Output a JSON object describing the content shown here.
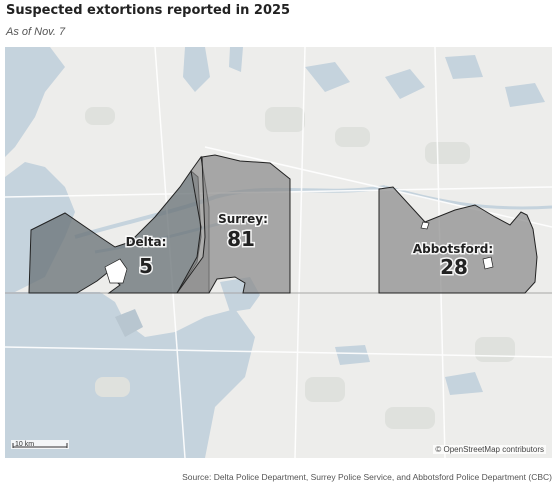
{
  "title": "Suspected extortions reported in 2025",
  "subtitle": "As of Nov. 7",
  "map": {
    "colors": {
      "water": "#c5d3dd",
      "land": "#ededeb",
      "region_fill": "#8a8a8a",
      "region_dark_fill": "#6c7478",
      "region_outline": "#222222"
    },
    "regions": [
      {
        "name": "Delta:",
        "count": "5"
      },
      {
        "name": "Surrey:",
        "count": "81"
      },
      {
        "name": "Abbotsford:",
        "count": "28"
      }
    ],
    "scale_label": "10 km",
    "attribution": "© OpenStreetMap contributors"
  },
  "source": "Source: Delta Police Department, Surrey Police Service, and Abbotsford Police Department (CBC)"
}
